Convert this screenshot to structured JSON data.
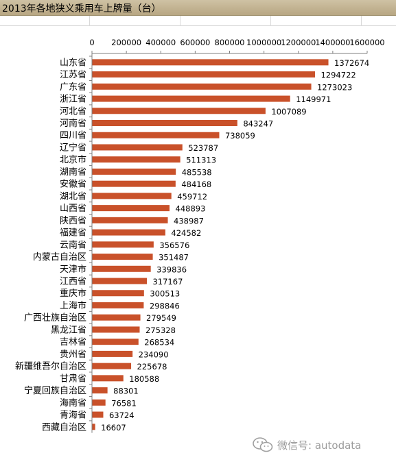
{
  "header": {
    "title": "2013年各地狭义乘用车上牌量（台）"
  },
  "watermark": {
    "text": "微信号: autodata",
    "icon": "wechat-icon"
  },
  "colors": {
    "bar": "#c9512a",
    "axis": "#7f7f7f",
    "title_bg": "#c4b693"
  },
  "chart_data": {
    "type": "bar",
    "orientation": "horizontal",
    "title": "2013年各地狭义乘用车上牌量（台）",
    "xlabel": "",
    "ylabel": "",
    "xlim": [
      0,
      1600000
    ],
    "ticks": [
      0,
      200000,
      400000,
      600000,
      800000,
      1000000,
      1200000,
      1400000,
      1600000
    ],
    "x_axis_position": "top",
    "grid": false,
    "legend": "none",
    "categories": [
      "山东省",
      "江苏省",
      "广东省",
      "浙江省",
      "河北省",
      "河南省",
      "四川省",
      "辽宁省",
      "北京市",
      "湖南省",
      "安徽省",
      "湖北省",
      "山西省",
      "陕西省",
      "福建省",
      "云南省",
      "内蒙古自治区",
      "天津市",
      "江西省",
      "重庆市",
      "上海市",
      "广西壮族自治区",
      "黑龙江省",
      "吉林省",
      "贵州省",
      "新疆维吾尔自治区",
      "甘肃省",
      "宁夏回族自治区",
      "海南省",
      "青海省",
      "西藏自治区"
    ],
    "values": [
      1372674,
      1294722,
      1273023,
      1149971,
      1007089,
      843247,
      738059,
      523787,
      511313,
      485538,
      484168,
      459712,
      448893,
      438987,
      424582,
      356576,
      351487,
      339836,
      317167,
      300513,
      298846,
      279549,
      275328,
      268534,
      234090,
      225678,
      180588,
      88301,
      76581,
      63724,
      16607
    ]
  }
}
